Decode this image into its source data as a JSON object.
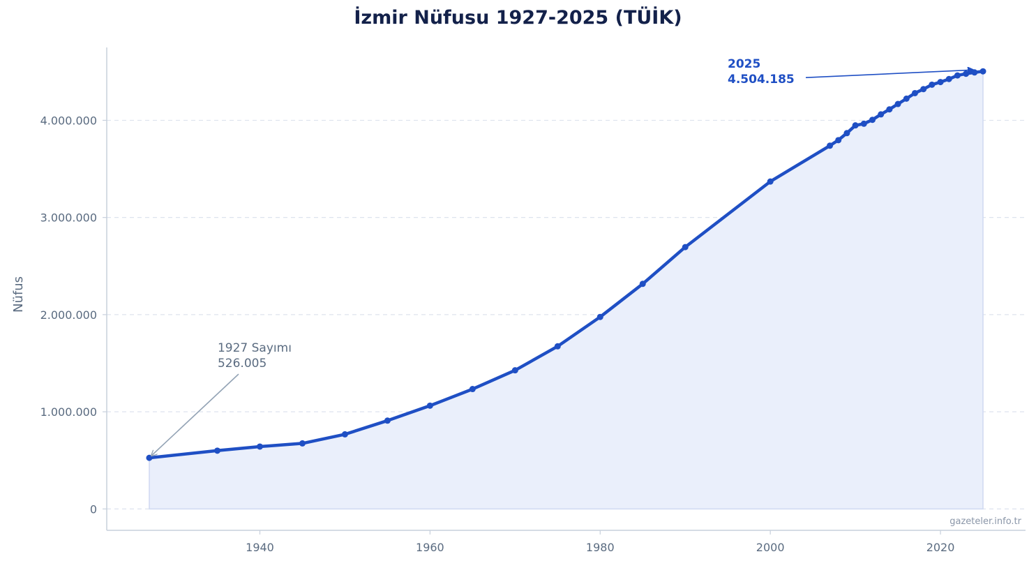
{
  "chart_data": {
    "type": "area",
    "title": "İzmir Nüfusu 1927-2025 (TÜİK)",
    "xlabel": "",
    "ylabel": "Nüfus",
    "xlim": [
      1922,
      2030
    ],
    "ylim": [
      -220000,
      4750000
    ],
    "x_ticks": [
      1940,
      1960,
      1980,
      2000,
      2020
    ],
    "y_ticks": [
      {
        "value": 0,
        "label": "0"
      },
      {
        "value": 1000000,
        "label": "1.000.000"
      },
      {
        "value": 2000000,
        "label": "2.000.000"
      },
      {
        "value": 3000000,
        "label": "3.000.000"
      },
      {
        "value": 4000000,
        "label": "4.000.000"
      }
    ],
    "grid": "horizontal-dashed",
    "series": [
      {
        "color": "#1f4fc4",
        "fill_color": "#eaeffb",
        "points": [
          {
            "x": 1927,
            "y": 526005
          },
          {
            "x": 1935,
            "y": 600000
          },
          {
            "x": 1940,
            "y": 642000
          },
          {
            "x": 1945,
            "y": 675000
          },
          {
            "x": 1950,
            "y": 768000
          },
          {
            "x": 1955,
            "y": 909000
          },
          {
            "x": 1960,
            "y": 1063000
          },
          {
            "x": 1965,
            "y": 1234000
          },
          {
            "x": 1970,
            "y": 1427000
          },
          {
            "x": 1975,
            "y": 1674000
          },
          {
            "x": 1980,
            "y": 1976000
          },
          {
            "x": 1985,
            "y": 2317000
          },
          {
            "x": 1990,
            "y": 2695000
          },
          {
            "x": 2000,
            "y": 3370000
          },
          {
            "x": 2007,
            "y": 3739000
          },
          {
            "x": 2008,
            "y": 3796000
          },
          {
            "x": 2009,
            "y": 3868000
          },
          {
            "x": 2010,
            "y": 3948000
          },
          {
            "x": 2011,
            "y": 3965000
          },
          {
            "x": 2012,
            "y": 4005000
          },
          {
            "x": 2013,
            "y": 4061000
          },
          {
            "x": 2014,
            "y": 4113000
          },
          {
            "x": 2015,
            "y": 4168000
          },
          {
            "x": 2016,
            "y": 4223000
          },
          {
            "x": 2017,
            "y": 4280000
          },
          {
            "x": 2018,
            "y": 4321000
          },
          {
            "x": 2019,
            "y": 4367000
          },
          {
            "x": 2020,
            "y": 4394000
          },
          {
            "x": 2021,
            "y": 4425000
          },
          {
            "x": 2022,
            "y": 4462000
          },
          {
            "x": 2023,
            "y": 4479000
          },
          {
            "x": 2024,
            "y": 4493000
          },
          {
            "x": 2025,
            "y": 4504185
          }
        ]
      }
    ],
    "annotations": [
      {
        "id": "first",
        "lines": [
          "1927 Sayımı",
          "526.005"
        ],
        "target": {
          "x": 1927,
          "y": 526005
        },
        "color": "#5a6b80",
        "arrow_color": "#93a3b5",
        "bold": false
      },
      {
        "id": "last",
        "lines": [
          "2025",
          "4.504.185"
        ],
        "target": {
          "x": 2025,
          "y": 4504185
        },
        "color": "#1f4fc4",
        "arrow_color": "#1f4fc4",
        "bold": true
      }
    ],
    "watermark": "gazeteler.info.tr"
  }
}
